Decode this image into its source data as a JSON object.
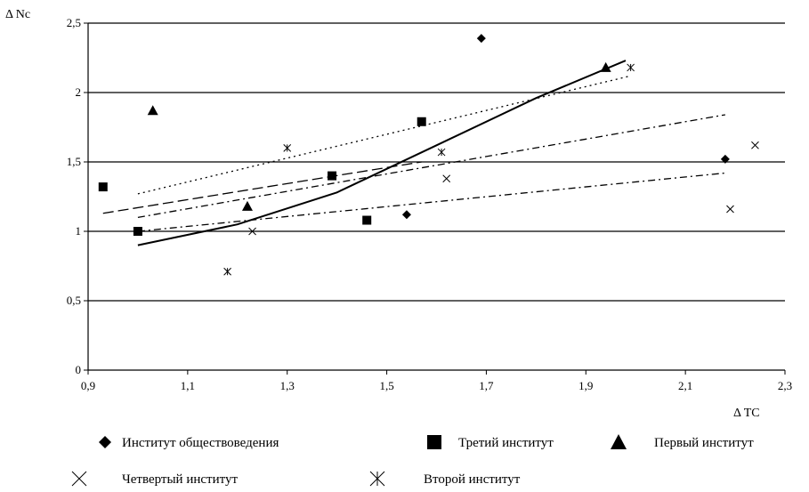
{
  "chart_data": {
    "type": "scatter",
    "xlabel": "Δ TC",
    "ylabel": "Δ Nc",
    "xlim": [
      0.9,
      2.3
    ],
    "ylim": [
      0,
      2.5
    ],
    "xticks": [
      "0,9",
      "1,1",
      "1,3",
      "1,5",
      "1,7",
      "1,9",
      "2,1",
      "2,3"
    ],
    "yticks": [
      "0",
      "0,5",
      "1",
      "1,5",
      "2",
      "2,5"
    ],
    "grid": "horizontal",
    "legend_position": "bottom",
    "series": [
      {
        "name": "Институт обществоведения",
        "marker": "diamond",
        "points": [
          [
            1.54,
            1.12
          ],
          [
            1.69,
            2.39
          ],
          [
            2.18,
            1.52
          ]
        ],
        "trend": {
          "style": "dashdot",
          "from": [
            1.0,
            1.0
          ],
          "to": [
            2.18,
            1.42
          ]
        }
      },
      {
        "name": "Третий институт",
        "marker": "square",
        "points": [
          [
            0.93,
            1.32
          ],
          [
            1.0,
            1.0
          ],
          [
            1.39,
            1.4
          ],
          [
            1.46,
            1.08
          ],
          [
            1.57,
            1.79
          ]
        ],
        "trend": {
          "style": "longdash",
          "from": [
            0.93,
            1.13
          ],
          "to": [
            1.57,
            1.5
          ]
        }
      },
      {
        "name": "Первый институт",
        "marker": "triangle",
        "points": [
          [
            1.03,
            1.87
          ],
          [
            1.22,
            1.18
          ],
          [
            1.94,
            2.18
          ]
        ],
        "trend": {
          "style": "solid-curve",
          "points": [
            [
              1.0,
              0.9
            ],
            [
              1.2,
              1.05
            ],
            [
              1.4,
              1.28
            ],
            [
              1.6,
              1.62
            ],
            [
              1.8,
              1.96
            ],
            [
              1.98,
              2.23
            ]
          ]
        }
      },
      {
        "name": "Четвертый институт",
        "marker": "cross",
        "points": [
          [
            1.23,
            1.0
          ],
          [
            1.62,
            1.38
          ],
          [
            2.19,
            1.16
          ],
          [
            2.24,
            1.62
          ]
        ],
        "trend": {
          "style": "dashdot",
          "from": [
            1.0,
            1.1
          ],
          "to": [
            2.18,
            1.84
          ]
        }
      },
      {
        "name": "Второй институт",
        "marker": "asterisk",
        "points": [
          [
            1.18,
            0.71
          ],
          [
            1.3,
            1.6
          ],
          [
            1.61,
            1.57
          ],
          [
            1.99,
            2.18
          ]
        ],
        "trend": {
          "style": "dotted",
          "from": [
            1.0,
            1.27
          ],
          "to": [
            1.99,
            2.12
          ]
        }
      }
    ]
  }
}
